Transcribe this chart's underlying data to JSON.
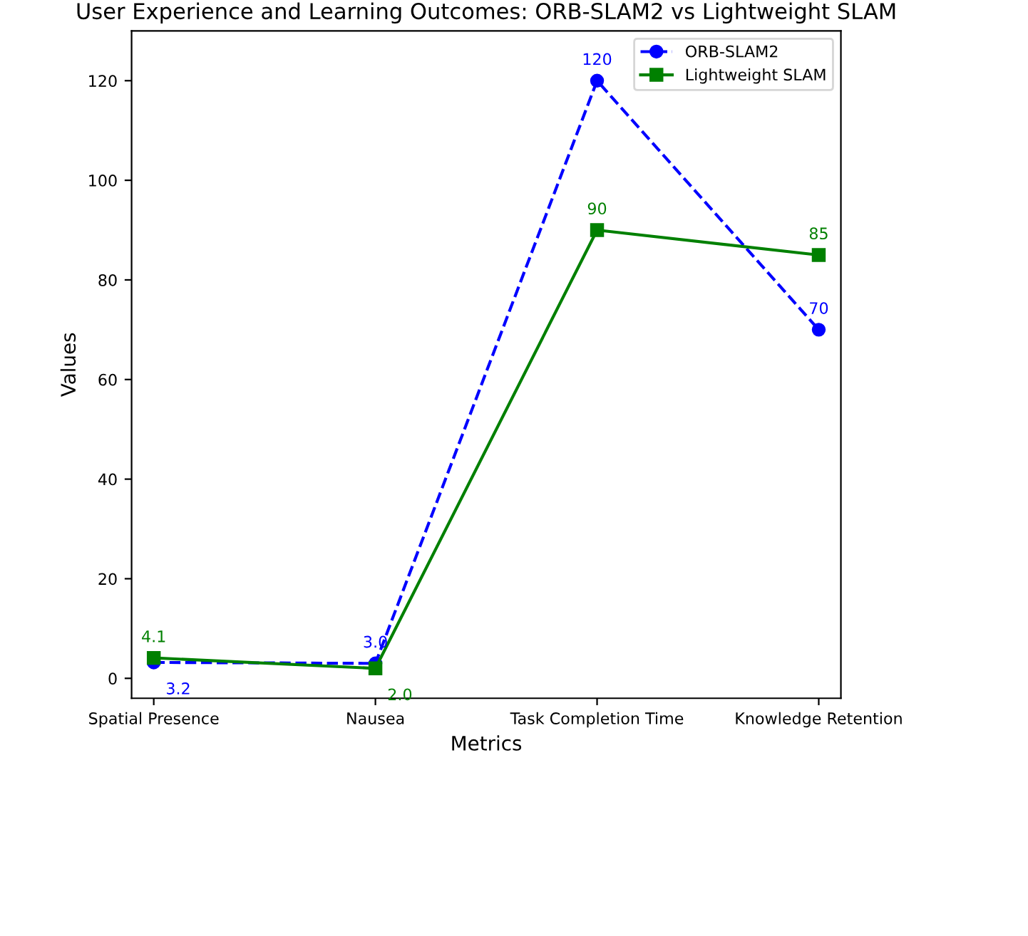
{
  "chart_data": {
    "type": "line",
    "title": "User Experience and Learning Outcomes: ORB-SLAM2 vs Lightweight SLAM",
    "xlabel": "Metrics",
    "ylabel": "Values",
    "categories": [
      "Spatial Presence",
      "Nausea",
      "Task Completion Time",
      "Knowledge Retention"
    ],
    "series": [
      {
        "name": "ORB-SLAM2",
        "color": "#0000ff",
        "values": [
          3.2,
          3.0,
          120,
          70
        ],
        "value_labels": [
          "3.2",
          "3.0",
          "120",
          "70"
        ],
        "marker": "circle",
        "line_style": "dashed"
      },
      {
        "name": "Lightweight SLAM",
        "color": "#008000",
        "values": [
          4.1,
          2.0,
          90,
          85
        ],
        "value_labels": [
          "4.1",
          "2.0",
          "90",
          "85"
        ],
        "marker": "square",
        "line_style": "solid"
      }
    ],
    "ylim": [
      -4,
      130
    ],
    "yticks": [
      0,
      20,
      40,
      60,
      80,
      100,
      120
    ],
    "legend": "top right",
    "grid": false
  }
}
